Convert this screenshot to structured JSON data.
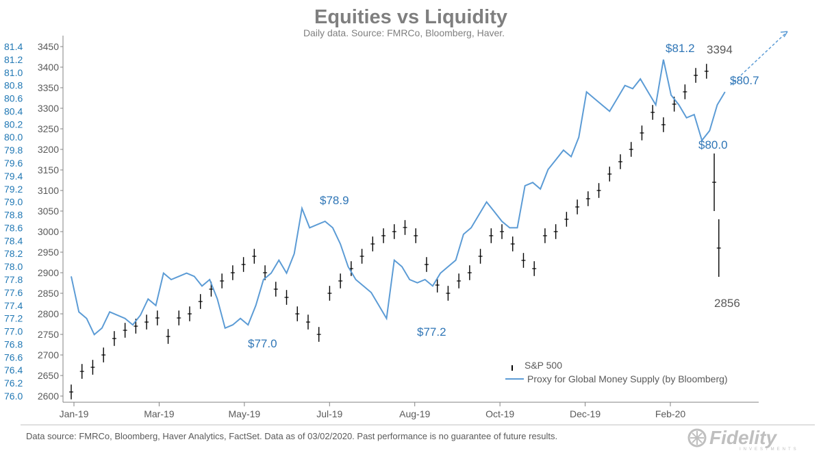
{
  "chart_data": {
    "type": "line",
    "title": "Equities vs Liquidity",
    "subtitle": "Daily data.  Source: FMRCo, Bloomberg, Haver.",
    "x_tick_labels": [
      "Jan-19",
      "Mar-19",
      "May-19",
      "Jul-19",
      "Aug-19",
      "Oct-19",
      "Dec-19",
      "Feb-20"
    ],
    "y_left": {
      "ticks": [
        "81.4",
        "81.2",
        "81.0",
        "80.8",
        "80.6",
        "80.4",
        "80.2",
        "80.0",
        "79.8",
        "79.6",
        "79.4",
        "79.2",
        "79.0",
        "78.8",
        "78.6",
        "78.4",
        "78.2",
        "78.0",
        "77.8",
        "77.6",
        "77.4",
        "77.2",
        "77.0",
        "76.8",
        "76.6",
        "76.4",
        "76.2",
        "76.0"
      ],
      "range": [
        76.0,
        81.4
      ],
      "color": "#1f77b4"
    },
    "y_right": {
      "ticks": [
        "3450",
        "3400",
        "3350",
        "3300",
        "3250",
        "3200",
        "3150",
        "3100",
        "3050",
        "3000",
        "2950",
        "2900",
        "2850",
        "2800",
        "2750",
        "2700",
        "2650",
        "2600"
      ],
      "range": [
        2600,
        3450
      ]
    },
    "x_range_days": [
      0,
      430
    ],
    "series": [
      {
        "name": "S&P 500",
        "style": "ohlc-bars",
        "color": "#000000",
        "axis": "right",
        "x": [
          0,
          7,
          14,
          21,
          28,
          35,
          42,
          49,
          56,
          63,
          70,
          77,
          84,
          91,
          98,
          105,
          112,
          119,
          126,
          133,
          140,
          147,
          154,
          161,
          168,
          175,
          182,
          189,
          196,
          203,
          210,
          217,
          224,
          231,
          238,
          245,
          252,
          259,
          266,
          273,
          280,
          287,
          294,
          301,
          308,
          315,
          322,
          329,
          336,
          343,
          350,
          357,
          364,
          371,
          378,
          385,
          392,
          399,
          406,
          413,
          418,
          421
        ],
        "values": [
          2610,
          2660,
          2670,
          2700,
          2740,
          2760,
          2770,
          2780,
          2790,
          2745,
          2790,
          2800,
          2830,
          2860,
          2880,
          2900,
          2920,
          2940,
          2900,
          2860,
          2840,
          2800,
          2780,
          2750,
          2850,
          2880,
          2910,
          2940,
          2970,
          2990,
          3000,
          3010,
          2990,
          2920,
          2870,
          2850,
          2880,
          2900,
          2940,
          2990,
          3000,
          2970,
          2930,
          2910,
          2990,
          3000,
          3030,
          3060,
          3080,
          3100,
          3140,
          3170,
          3200,
          3240,
          3290,
          3260,
          3310,
          3340,
          3380,
          3390,
          3120,
          2960
        ]
      },
      {
        "name": "Proxy for Global Money Supply (by Bloomberg)",
        "style": "line",
        "color": "#5b9bd5",
        "axis": "left",
        "x": [
          0,
          5,
          10,
          15,
          20,
          25,
          30,
          35,
          40,
          45,
          50,
          55,
          60,
          65,
          70,
          75,
          80,
          85,
          90,
          95,
          100,
          105,
          110,
          115,
          120,
          125,
          130,
          135,
          140,
          145,
          150,
          155,
          160,
          165,
          170,
          175,
          180,
          185,
          190,
          195,
          200,
          205,
          210,
          215,
          220,
          225,
          230,
          235,
          240,
          245,
          250,
          255,
          260,
          265,
          270,
          275,
          280,
          285,
          290,
          295,
          300,
          305,
          310,
          315,
          320,
          325,
          330,
          335,
          340,
          345,
          350,
          355,
          360,
          365,
          370,
          375,
          380,
          385,
          390,
          395,
          400,
          405,
          410,
          415,
          420,
          425
        ],
        "values": [
          77.85,
          77.3,
          77.2,
          76.95,
          77.05,
          77.3,
          77.25,
          77.2,
          77.1,
          77.25,
          77.5,
          77.4,
          77.9,
          77.8,
          77.85,
          77.9,
          77.85,
          77.7,
          77.8,
          77.5,
          77.05,
          77.1,
          77.2,
          77.1,
          77.4,
          77.8,
          77.9,
          78.1,
          77.9,
          78.2,
          78.9,
          78.6,
          78.65,
          78.7,
          78.6,
          78.35,
          78.0,
          77.8,
          77.7,
          77.6,
          77.4,
          77.2,
          78.1,
          78.0,
          77.8,
          77.75,
          77.8,
          77.7,
          77.9,
          78.0,
          78.1,
          78.5,
          78.6,
          78.8,
          79.0,
          78.85,
          78.7,
          78.6,
          78.6,
          79.25,
          79.3,
          79.2,
          79.5,
          79.65,
          79.8,
          79.7,
          80.0,
          80.7,
          80.6,
          80.5,
          80.4,
          80.6,
          80.8,
          80.75,
          80.9,
          80.7,
          80.5,
          81.2,
          80.65,
          80.5,
          80.3,
          80.35,
          79.95,
          80.1,
          80.5,
          80.7
        ]
      }
    ],
    "annotations": [
      {
        "text": "$81.2",
        "color": "blue"
      },
      {
        "text": "3394",
        "color": "gray"
      },
      {
        "text": "$80.7",
        "color": "blue"
      },
      {
        "text": "$80.0",
        "color": "blue"
      },
      {
        "text": "$78.9",
        "color": "blue"
      },
      {
        "text": "$77.0",
        "color": "blue"
      },
      {
        "text": "$77.2",
        "color": "blue"
      },
      {
        "text": "2856",
        "color": "gray"
      }
    ],
    "legend": {
      "placement": "bottom-right",
      "items": [
        "S&P 500",
        "Proxy for Global Money Supply (by Bloomberg)"
      ]
    },
    "grid": false
  },
  "footnote": "Data source: FMRCo, Bloomberg, Haver Analytics, FactSet.  Data as of 03/02/2020. Past performance is no guarantee of future results.",
  "logo": {
    "name": "Fidelity",
    "subtext": "INVESTMENTS"
  }
}
